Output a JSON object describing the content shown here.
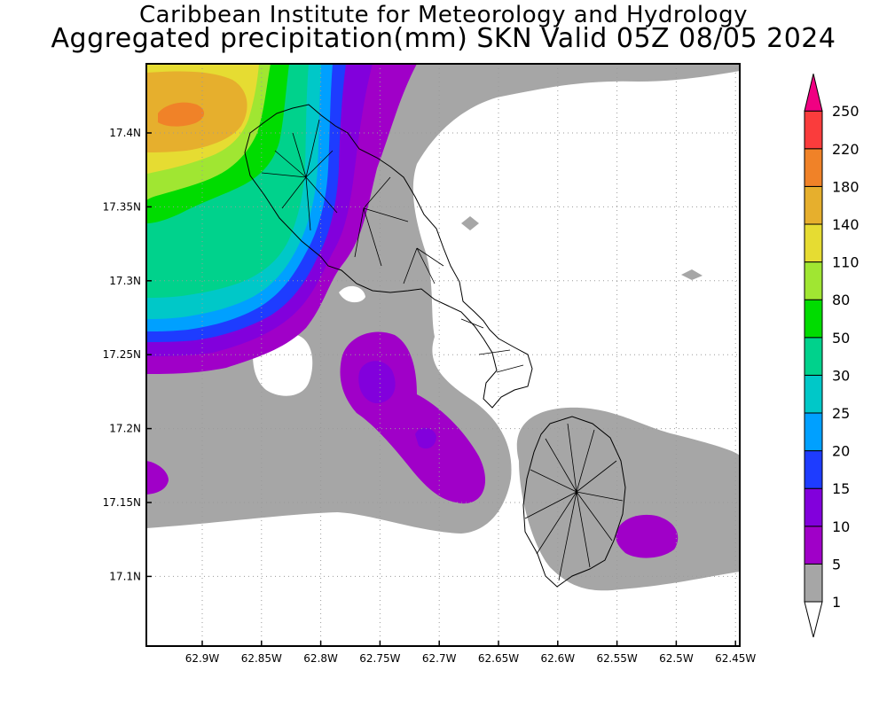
{
  "title": {
    "line1": "Caribbean Institute for Meteorology and Hydrology",
    "line2": "Aggregated precipitation(mm) SKN Valid 05Z 08/05 2024"
  },
  "axes": {
    "x_ticks": [
      "62.9W",
      "62.85W",
      "62.8W",
      "62.75W",
      "62.7W",
      "62.65W",
      "62.6W",
      "62.55W",
      "62.5W",
      "62.45W"
    ],
    "y_ticks": [
      "17.4N",
      "17.35N",
      "17.3N",
      "17.25N",
      "17.2N",
      "17.15N",
      "17.1N"
    ],
    "grid": "dotted"
  },
  "colorbar": {
    "levels": [
      {
        "label": "1",
        "color": "#ffffff"
      },
      {
        "label": "5",
        "color": "#a6a6a6"
      },
      {
        "label": "10",
        "color": "#a000c8"
      },
      {
        "label": "15",
        "color": "#8200dc"
      },
      {
        "label": "20",
        "color": "#1e3cff"
      },
      {
        "label": "25",
        "color": "#00a0ff"
      },
      {
        "label": "30",
        "color": "#00c8c8"
      },
      {
        "label": "50",
        "color": "#00d28c"
      },
      {
        "label": "80",
        "color": "#00dc00"
      },
      {
        "label": "110",
        "color": "#a0e632"
      },
      {
        "label": "140",
        "color": "#e6dc32"
      },
      {
        "label": "180",
        "color": "#e6af2d"
      },
      {
        "label": "220",
        "color": "#f08228"
      },
      {
        "label": "250",
        "color": "#fa3c3c"
      }
    ],
    "top_arrow_color": "#f00082",
    "bottom_arrow_color": "#ffffff"
  }
}
